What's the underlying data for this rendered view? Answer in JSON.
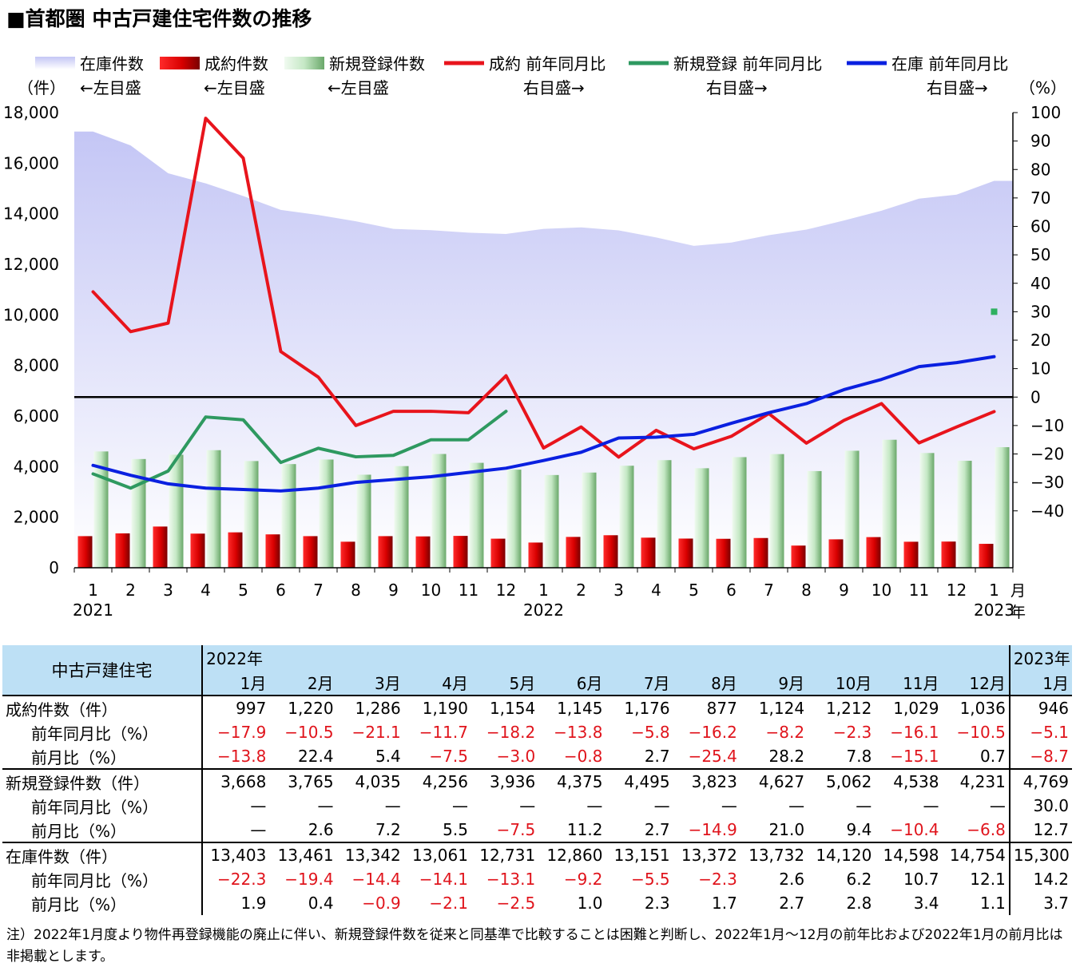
{
  "title": "■首都圏 中古戸建住宅件数の推移",
  "chart_data": {
    "type": "bar+line+area",
    "months": [
      "1",
      "2",
      "3",
      "4",
      "5",
      "6",
      "7",
      "8",
      "9",
      "10",
      "11",
      "12",
      "1",
      "2",
      "3",
      "4",
      "5",
      "6",
      "7",
      "8",
      "9",
      "10",
      "11",
      "12",
      "1"
    ],
    "year_labels": [
      {
        "index": 0,
        "label": "2021"
      },
      {
        "index": 12,
        "label": "2022"
      },
      {
        "index": 24,
        "label": "2023"
      }
    ],
    "x_unit_month": "月",
    "x_unit_year": "年",
    "left_axis": {
      "unit": "（件）",
      "ylim": [
        0,
        18000
      ],
      "ticks": [
        0,
        2000,
        4000,
        6000,
        8000,
        10000,
        12000,
        14000,
        16000,
        18000
      ],
      "tick_labels": [
        "0",
        "2,000",
        "4,000",
        "6,000",
        "8,000",
        "10,000",
        "12,000",
        "14,000",
        "16,000",
        "18,000"
      ]
    },
    "right_axis": {
      "unit": "（%）",
      "ylim": [
        -60,
        100
      ],
      "ticks": [
        100,
        90,
        80,
        70,
        60,
        50,
        40,
        30,
        20,
        10,
        0,
        -10,
        -20,
        -30,
        -40
      ],
      "tick_labels": [
        "100",
        "90",
        "80",
        "70",
        "60",
        "50",
        "40",
        "30",
        "20",
        "10",
        "0",
        "−10",
        "−20",
        "−30",
        "−40"
      ]
    },
    "legend": [
      {
        "label": "在庫件数",
        "axis_note": "←左目盛",
        "color": "#c8cbf5",
        "kind": "area"
      },
      {
        "label": "成約件数",
        "axis_note": "←左目盛",
        "color": "#e00000",
        "kind": "bar"
      },
      {
        "label": "新規登録件数",
        "axis_note": "←左目盛",
        "color": "#bfe3bf",
        "kind": "bar"
      },
      {
        "label": "成約 前年同月比",
        "axis_note": "右目盛→",
        "color": "#e8141c",
        "kind": "line"
      },
      {
        "label": "新規登録 前年同月比",
        "axis_note": "右目盛→",
        "color": "#2e9960",
        "kind": "line"
      },
      {
        "label": "在庫 前年同月比",
        "axis_note": "右目盛→",
        "color": "#0a20e0",
        "kind": "line"
      }
    ],
    "series": [
      {
        "name": "在庫件数",
        "axis": "left",
        "kind": "area",
        "values": [
          17250,
          16700,
          15600,
          15200,
          14700,
          14150,
          13950,
          13700,
          13400,
          13350,
          13250,
          13200,
          13403,
          13461,
          13342,
          13061,
          12731,
          12860,
          13151,
          13372,
          13732,
          14120,
          14598,
          14754,
          15300
        ]
      },
      {
        "name": "成約件数",
        "axis": "left",
        "kind": "bar",
        "values": [
          1250,
          1360,
          1630,
          1350,
          1400,
          1320,
          1250,
          1030,
          1250,
          1240,
          1260,
          1150,
          997,
          1220,
          1286,
          1190,
          1154,
          1145,
          1176,
          877,
          1124,
          1212,
          1029,
          1036,
          946
        ]
      },
      {
        "name": "新規登録件数",
        "axis": "left",
        "kind": "bar",
        "values": [
          4600,
          4300,
          4470,
          4650,
          4220,
          4100,
          4280,
          3680,
          4020,
          4500,
          4150,
          3880,
          3668,
          3765,
          4035,
          4256,
          3936,
          4375,
          4495,
          3823,
          4627,
          5062,
          4538,
          4231,
          4769
        ]
      },
      {
        "name": "成約 前年同月比",
        "axis": "right",
        "kind": "line",
        "values": [
          37,
          23,
          26,
          98,
          84,
          16,
          7,
          -10,
          -5,
          -5,
          -5.5,
          7.5,
          -17.9,
          -10.5,
          -21.1,
          -11.7,
          -18.2,
          -13.8,
          -5.8,
          -16.2,
          -8.2,
          -2.3,
          -16.1,
          -10.5,
          -5.1
        ]
      },
      {
        "name": "新規登録 前年同月比",
        "axis": "right",
        "kind": "line",
        "values": [
          -27,
          -32,
          -26,
          -7,
          -8,
          -23,
          -18,
          -21,
          -20.5,
          -15,
          -15,
          -5,
          null,
          null,
          null,
          null,
          null,
          null,
          null,
          null,
          null,
          null,
          null,
          null,
          null
        ]
      },
      {
        "name": "新規登録 前年同月比 2023",
        "axis": "right",
        "kind": "point",
        "index": 24,
        "value": 30
      },
      {
        "name": "在庫 前年同月比",
        "axis": "right",
        "kind": "line",
        "values": [
          -24,
          -27.5,
          -30.5,
          -32,
          -32.5,
          -33,
          -32,
          -30,
          -29,
          -28,
          -26.5,
          -25,
          -22.3,
          -19.4,
          -14.4,
          -14.1,
          -13.1,
          -9.2,
          -5.5,
          -2.3,
          2.6,
          6.2,
          10.7,
          12.1,
          14.2
        ]
      }
    ]
  },
  "table": {
    "corner": "中古戸建住宅",
    "year_2022": "2022年",
    "year_2023": "2023年",
    "month_headers": [
      "1月",
      "2月",
      "3月",
      "4月",
      "5月",
      "6月",
      "7月",
      "8月",
      "9月",
      "10月",
      "11月",
      "12月"
    ],
    "month_2023": "1月",
    "rows": [
      {
        "label": "成約件数（件）",
        "sub": false,
        "block_start": true,
        "values": [
          "997",
          "1,220",
          "1,286",
          "1,190",
          "1,154",
          "1,145",
          "1,176",
          "877",
          "1,124",
          "1,212",
          "1,029",
          "1,036"
        ],
        "last": "946"
      },
      {
        "label": "前年同月比（%）",
        "sub": true,
        "values": [
          "−17.9",
          "−10.5",
          "−21.1",
          "−11.7",
          "−18.2",
          "−13.8",
          "−5.8",
          "−16.2",
          "−8.2",
          "−2.3",
          "−16.1",
          "−10.5"
        ],
        "last": "−5.1"
      },
      {
        "label": "前月比（%）",
        "sub": true,
        "values": [
          "−13.8",
          "22.4",
          "5.4",
          "−7.5",
          "−3.0",
          "−0.8",
          "2.7",
          "−25.4",
          "28.2",
          "7.8",
          "−15.1",
          "0.7"
        ],
        "last": "−8.7"
      },
      {
        "label": "新規登録件数（件）",
        "sub": false,
        "block_start": true,
        "values": [
          "3,668",
          "3,765",
          "4,035",
          "4,256",
          "3,936",
          "4,375",
          "4,495",
          "3,823",
          "4,627",
          "5,062",
          "4,538",
          "4,231"
        ],
        "last": "4,769"
      },
      {
        "label": "前年同月比（%）",
        "sub": true,
        "values": [
          "—",
          "—",
          "—",
          "—",
          "—",
          "—",
          "—",
          "—",
          "—",
          "—",
          "—",
          "—"
        ],
        "last": "30.0"
      },
      {
        "label": "前月比（%）",
        "sub": true,
        "values": [
          "—",
          "2.6",
          "7.2",
          "5.5",
          "−7.5",
          "11.2",
          "2.7",
          "−14.9",
          "21.0",
          "9.4",
          "−10.4",
          "−6.8"
        ],
        "last": "12.7"
      },
      {
        "label": "在庫件数（件）",
        "sub": false,
        "block_start": true,
        "values": [
          "13,403",
          "13,461",
          "13,342",
          "13,061",
          "12,731",
          "12,860",
          "13,151",
          "13,372",
          "13,732",
          "14,120",
          "14,598",
          "14,754"
        ],
        "last": "15,300"
      },
      {
        "label": "前年同月比（%）",
        "sub": true,
        "values": [
          "−22.3",
          "−19.4",
          "−14.4",
          "−14.1",
          "−13.1",
          "−9.2",
          "−5.5",
          "−2.3",
          "2.6",
          "6.2",
          "10.7",
          "12.1"
        ],
        "last": "14.2"
      },
      {
        "label": "前月比（%）",
        "sub": true,
        "values": [
          "1.9",
          "0.4",
          "−0.9",
          "−2.1",
          "−2.5",
          "1.0",
          "2.3",
          "1.7",
          "2.7",
          "2.8",
          "3.4",
          "1.1"
        ],
        "last": "3.7"
      }
    ],
    "note": "注）2022年1月度より物件再登録機能の廃止に伴い、新規登録件数を従来と同基準で比較することは困難と判断し、2022年1月～12月の前年比および2022年1月の前月比は非掲載とします。"
  }
}
